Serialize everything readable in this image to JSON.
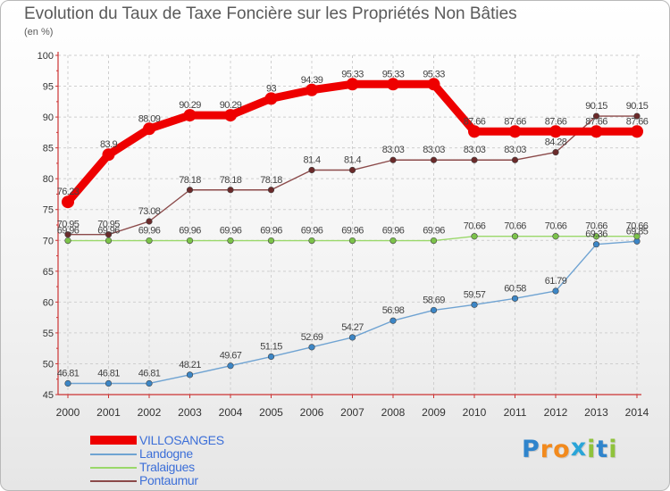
{
  "title": "Evolution du Taux de Taxe Foncière sur les Propriétés Non Bâties",
  "unit_label": "(en %)",
  "brand": {
    "letters": [
      "P",
      "r",
      "o",
      "x",
      "i",
      "t",
      "i"
    ],
    "colors": [
      "#2f84cc",
      "#f28a1d",
      "#f28a1d",
      "#2aa5d8",
      "#8fc23b",
      "#2f84cc",
      "#8fc23b"
    ]
  },
  "chart_data": {
    "type": "line",
    "title": "Evolution du Taux de Taxe Foncière sur les Propriétés Non Bâties",
    "ylabel": "(en %)",
    "xlabel": "",
    "ylim": [
      45,
      100
    ],
    "yticks": [
      45,
      50,
      55,
      60,
      65,
      70,
      75,
      80,
      85,
      90,
      95,
      100
    ],
    "grid": true,
    "x": [
      "2000",
      "2001",
      "2002",
      "2003",
      "2004",
      "2005",
      "2006",
      "2007",
      "2008",
      "2009",
      "2010",
      "2011",
      "2012",
      "2013",
      "2014"
    ],
    "series": [
      {
        "name": "Landogne",
        "color": "#6fa3d2",
        "marker": "#3c86c6",
        "values": [
          46.81,
          46.81,
          46.81,
          48.21,
          49.67,
          51.15,
          52.69,
          54.27,
          56.98,
          58.69,
          59.57,
          60.58,
          61.79,
          69.36,
          69.85
        ],
        "labels": [
          "46.81",
          "46.81",
          "46.81",
          "48.21",
          "49.67",
          "51.15",
          "52.69",
          "54.27",
          "56.98",
          "58.69",
          "59.57",
          "60.58",
          "61.79",
          "69.36",
          "69.85"
        ]
      },
      {
        "name": "Tralaigues",
        "color": "#9ad86a",
        "marker": "#7cc34a",
        "values": [
          69.96,
          69.96,
          69.96,
          69.96,
          69.96,
          69.96,
          69.96,
          69.96,
          69.96,
          69.96,
          70.66,
          70.66,
          70.66,
          70.66,
          70.66
        ],
        "labels": [
          "69.96",
          "69.96",
          "69.96",
          "69.96",
          "69.96",
          "69.96",
          "69.96",
          "69.96",
          "69.96",
          "69.96",
          "70.66",
          "70.66",
          "70.66",
          "70.66",
          "70.66"
        ]
      },
      {
        "name": "Pontaumur",
        "color": "#8b4a4a",
        "marker": "#6b2a2a",
        "values": [
          70.95,
          70.95,
          73.08,
          78.18,
          78.18,
          78.18,
          81.4,
          81.4,
          83.03,
          83.03,
          83.03,
          83.03,
          84.28,
          90.15,
          90.15
        ],
        "labels": [
          "70.95",
          "70.95",
          "73.08",
          "78.18",
          "78.18",
          "78.18",
          "81.4",
          "81.4",
          "83.03",
          "83.03",
          "83.03",
          "83.03",
          "84.28",
          "90.15",
          "90.15"
        ]
      },
      {
        "name": "VILLOSANGES",
        "color": "#ee0000",
        "marker": "#ee0000",
        "values": [
          76.23,
          83.9,
          88.09,
          90.29,
          90.29,
          93,
          94.39,
          95.33,
          95.33,
          95.33,
          87.66,
          87.66,
          87.66,
          87.66,
          87.66
        ],
        "labels": [
          "76.23",
          "83.9",
          "88.09",
          "90.29",
          "90.29",
          "93",
          "94.39",
          "95.33",
          "95.33",
          "95.33",
          "87.66",
          "87.66",
          "87.66",
          "87.66",
          "87.66"
        ]
      }
    ],
    "legend": {
      "position": "bottom-left",
      "items": [
        {
          "name": "VILLOSANGES",
          "color": "#ee0000"
        },
        {
          "name": "Landogne",
          "color": "#6fa3d2"
        },
        {
          "name": "Tralaigues",
          "color": "#9ad86a"
        },
        {
          "name": "Pontaumur",
          "color": "#8b4a4a"
        }
      ]
    }
  }
}
